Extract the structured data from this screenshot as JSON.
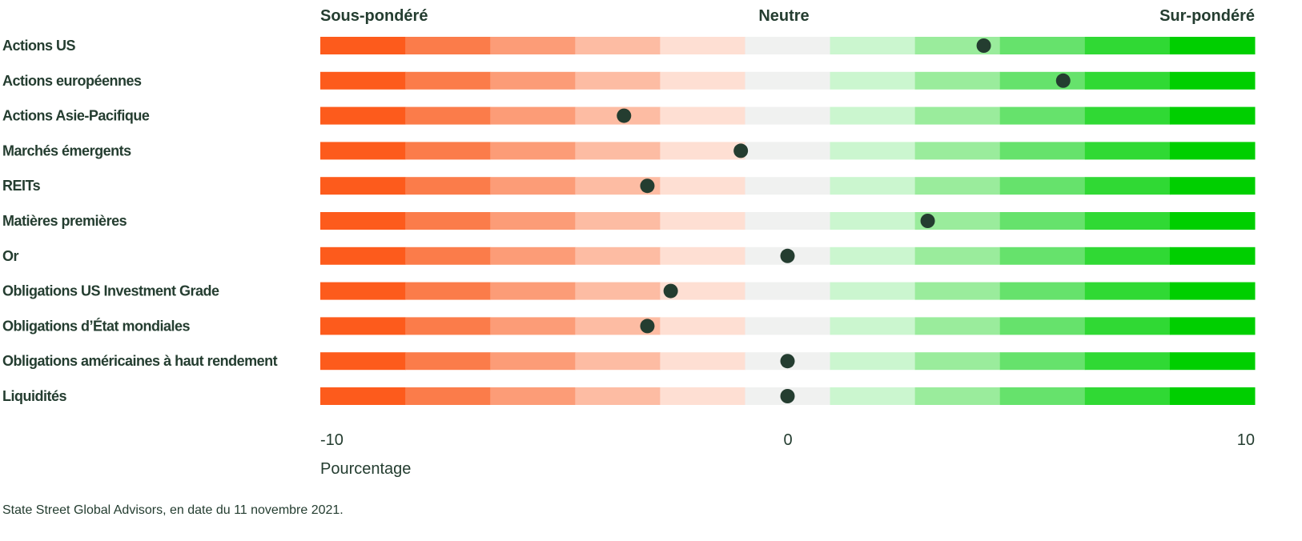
{
  "chart_data": {
    "type": "dot-scale",
    "header": {
      "left": "Sous-pondéré",
      "center": "Neutre",
      "right": "Sur-pondéré"
    },
    "xlabel": "Pourcentage",
    "xlim": [
      -10,
      10
    ],
    "xticks": [
      "-10",
      "0",
      "10"
    ],
    "segment_colors": [
      "#fd5b1c",
      "#fb7c4a",
      "#fc9c77",
      "#fdbca3",
      "#fedfd3",
      "#f0f1f0",
      "#cbf6cf",
      "#9aec9c",
      "#66e26c",
      "#30d934",
      "#00cf00"
    ],
    "dot_color": "#243d30",
    "categories": [
      "Actions US",
      "Actions européennes",
      "Actions Asie-Pacifique",
      "Marchés émergents",
      "REITs",
      "Matières premières",
      "Or",
      "Obligations US Investment Grade",
      "Obligations d’État mondiales",
      "Obligations américaines à haut rendement",
      "Liquidités"
    ],
    "values": [
      4.2,
      5.9,
      -3.5,
      -1.0,
      -3.0,
      3.0,
      0,
      -2.5,
      -3.0,
      0,
      0
    ]
  },
  "source": "State Street Global Advisors, en date du 11 novembre 2021."
}
